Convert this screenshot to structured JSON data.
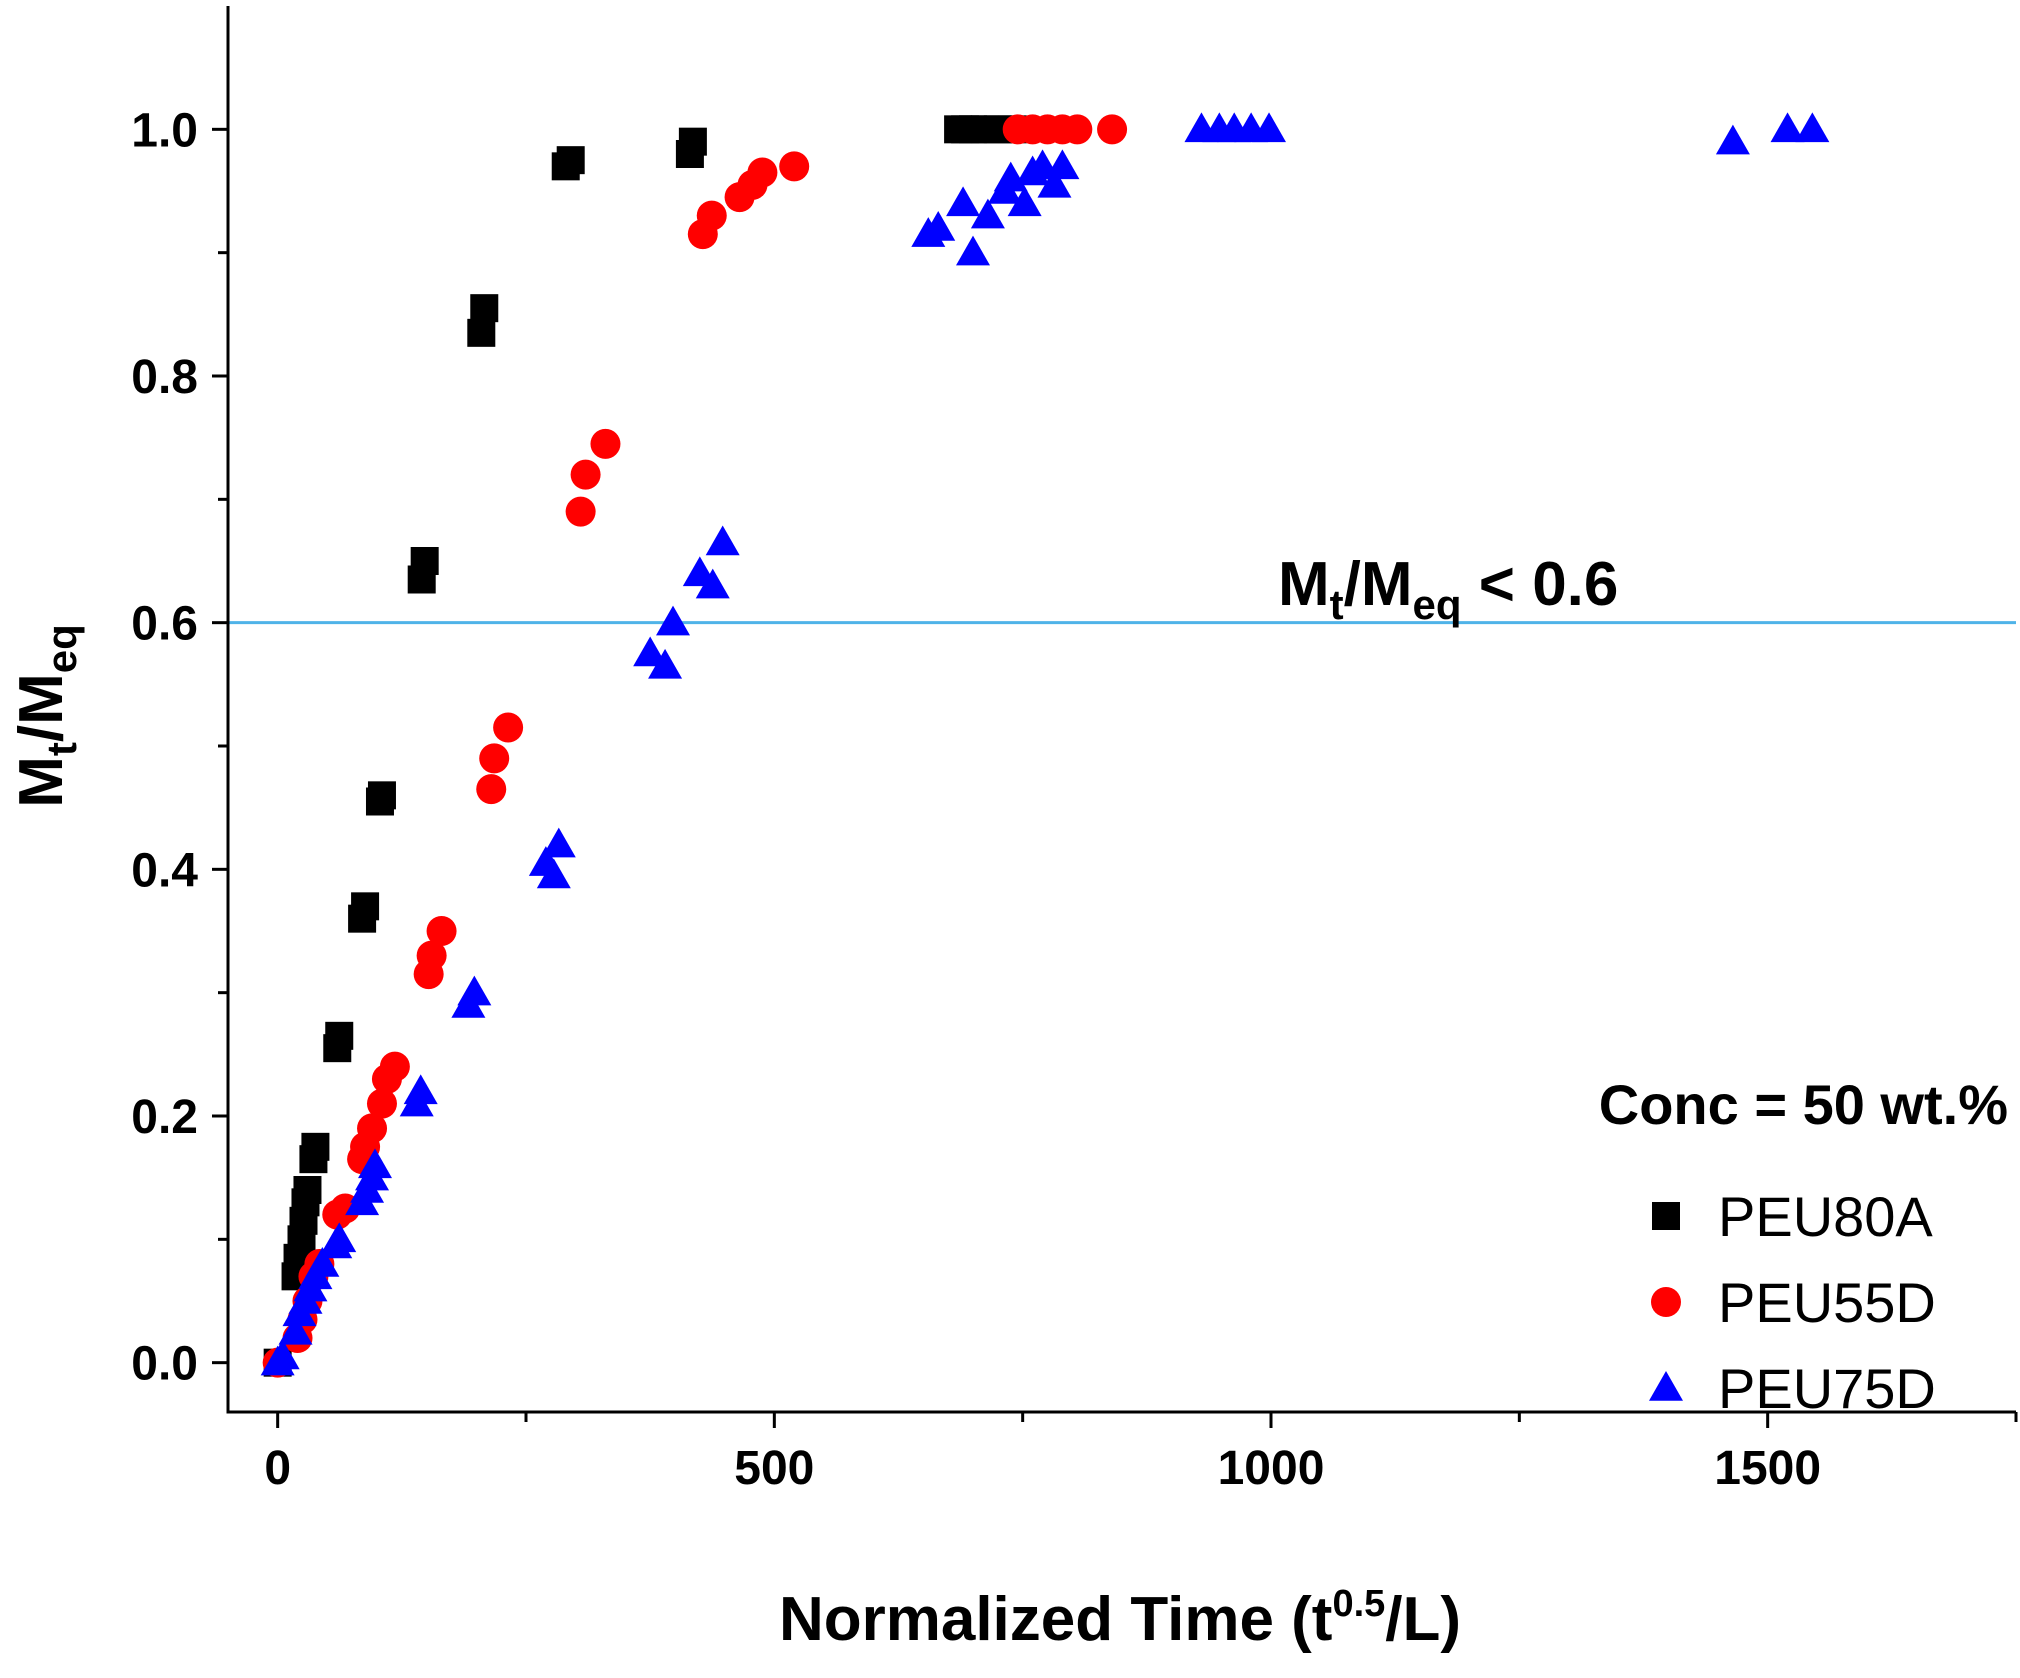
{
  "chart_data": {
    "type": "scatter",
    "xlabel": {
      "main": "Normalized Time (t",
      "sup": "0.5",
      "tail": "/L)"
    },
    "ylabel": {
      "m1": "M",
      "sub1": "t",
      "mid": "/M",
      "sub2": "eq"
    },
    "xlim": [
      -50,
      1750
    ],
    "ylim": [
      -0.04,
      1.1
    ],
    "x_ticks": [
      0,
      500,
      1000,
      1500
    ],
    "x_minor_ticks": [
      250,
      750,
      1250,
      1750
    ],
    "y_ticks": [
      0.0,
      0.2,
      0.4,
      0.6,
      0.8,
      1.0
    ],
    "y_tick_labels": [
      "0.0",
      "0.2",
      "0.4",
      "0.6",
      "0.8",
      "1.0"
    ],
    "y_minor_ticks": [
      0.1,
      0.3,
      0.5,
      0.7,
      0.9
    ],
    "reference_line": {
      "y": 0.6,
      "color": "#4fb3e8"
    },
    "annotation": {
      "m1": "M",
      "sub1": "t",
      "mid": "/M",
      "sub2": "eq",
      "tail": " < 0.6"
    },
    "legend": {
      "title": "Conc = 50 wt.%",
      "placement": "bottom-right"
    },
    "series": [
      {
        "name": "PEU80A",
        "marker": "square",
        "color": "#000000",
        "points": [
          [
            0,
            0.0
          ],
          [
            18,
            0.07
          ],
          [
            20,
            0.085
          ],
          [
            24,
            0.1
          ],
          [
            26,
            0.115
          ],
          [
            28,
            0.13
          ],
          [
            30,
            0.14
          ],
          [
            36,
            0.165
          ],
          [
            38,
            0.175
          ],
          [
            60,
            0.255
          ],
          [
            62,
            0.265
          ],
          [
            85,
            0.36
          ],
          [
            88,
            0.37
          ],
          [
            103,
            0.455
          ],
          [
            105,
            0.46
          ],
          [
            145,
            0.635
          ],
          [
            148,
            0.65
          ],
          [
            205,
            0.835
          ],
          [
            208,
            0.855
          ],
          [
            290,
            0.97
          ],
          [
            295,
            0.975
          ],
          [
            415,
            0.98
          ],
          [
            418,
            0.99
          ],
          [
            685,
            1.0
          ],
          [
            692,
            1.0
          ],
          [
            700,
            1.0
          ],
          [
            712,
            1.0
          ],
          [
            725,
            1.0
          ],
          [
            740,
            1.0
          ]
        ]
      },
      {
        "name": "PEU55D",
        "marker": "circle",
        "color": "#ff0000",
        "points": [
          [
            0,
            0.0
          ],
          [
            20,
            0.02
          ],
          [
            25,
            0.035
          ],
          [
            30,
            0.05
          ],
          [
            36,
            0.07
          ],
          [
            42,
            0.08
          ],
          [
            60,
            0.12
          ],
          [
            68,
            0.125
          ],
          [
            85,
            0.165
          ],
          [
            88,
            0.175
          ],
          [
            95,
            0.19
          ],
          [
            105,
            0.21
          ],
          [
            110,
            0.23
          ],
          [
            118,
            0.24
          ],
          [
            152,
            0.315
          ],
          [
            155,
            0.33
          ],
          [
            165,
            0.35
          ],
          [
            215,
            0.465
          ],
          [
            218,
            0.49
          ],
          [
            232,
            0.515
          ],
          [
            305,
            0.69
          ],
          [
            310,
            0.72
          ],
          [
            330,
            0.745
          ],
          [
            428,
            0.915
          ],
          [
            437,
            0.93
          ],
          [
            465,
            0.945
          ],
          [
            478,
            0.955
          ],
          [
            488,
            0.965
          ],
          [
            520,
            0.97
          ],
          [
            745,
            1.0
          ],
          [
            760,
            1.0
          ],
          [
            775,
            1.0
          ],
          [
            790,
            1.0
          ],
          [
            805,
            1.0
          ],
          [
            840,
            1.0
          ]
        ]
      },
      {
        "name": "PEU75D",
        "marker": "triangle",
        "color": "#0000ff",
        "points": [
          [
            0,
            0.0
          ],
          [
            5,
            0.005
          ],
          [
            18,
            0.025
          ],
          [
            22,
            0.04
          ],
          [
            28,
            0.05
          ],
          [
            33,
            0.06
          ],
          [
            38,
            0.07
          ],
          [
            45,
            0.08
          ],
          [
            58,
            0.095
          ],
          [
            62,
            0.1
          ],
          [
            85,
            0.13
          ],
          [
            90,
            0.14
          ],
          [
            95,
            0.15
          ],
          [
            98,
            0.16
          ],
          [
            140,
            0.21
          ],
          [
            144,
            0.22
          ],
          [
            192,
            0.29
          ],
          [
            198,
            0.3
          ],
          [
            270,
            0.405
          ],
          [
            278,
            0.395
          ],
          [
            283,
            0.42
          ],
          [
            375,
            0.575
          ],
          [
            390,
            0.565
          ],
          [
            398,
            0.6
          ],
          [
            425,
            0.64
          ],
          [
            438,
            0.63
          ],
          [
            448,
            0.665
          ],
          [
            655,
            0.915
          ],
          [
            665,
            0.92
          ],
          [
            690,
            0.94
          ],
          [
            700,
            0.9
          ],
          [
            715,
            0.93
          ],
          [
            732,
            0.95
          ],
          [
            738,
            0.96
          ],
          [
            752,
            0.94
          ],
          [
            760,
            0.965
          ],
          [
            770,
            0.97
          ],
          [
            782,
            0.955
          ],
          [
            790,
            0.97
          ],
          [
            930,
            1.0
          ],
          [
            948,
            1.0
          ],
          [
            963,
            1.0
          ],
          [
            980,
            1.0
          ],
          [
            998,
            1.0
          ],
          [
            1465,
            0.99
          ],
          [
            1520,
            1.0
          ],
          [
            1545,
            1.0
          ]
        ]
      }
    ]
  }
}
